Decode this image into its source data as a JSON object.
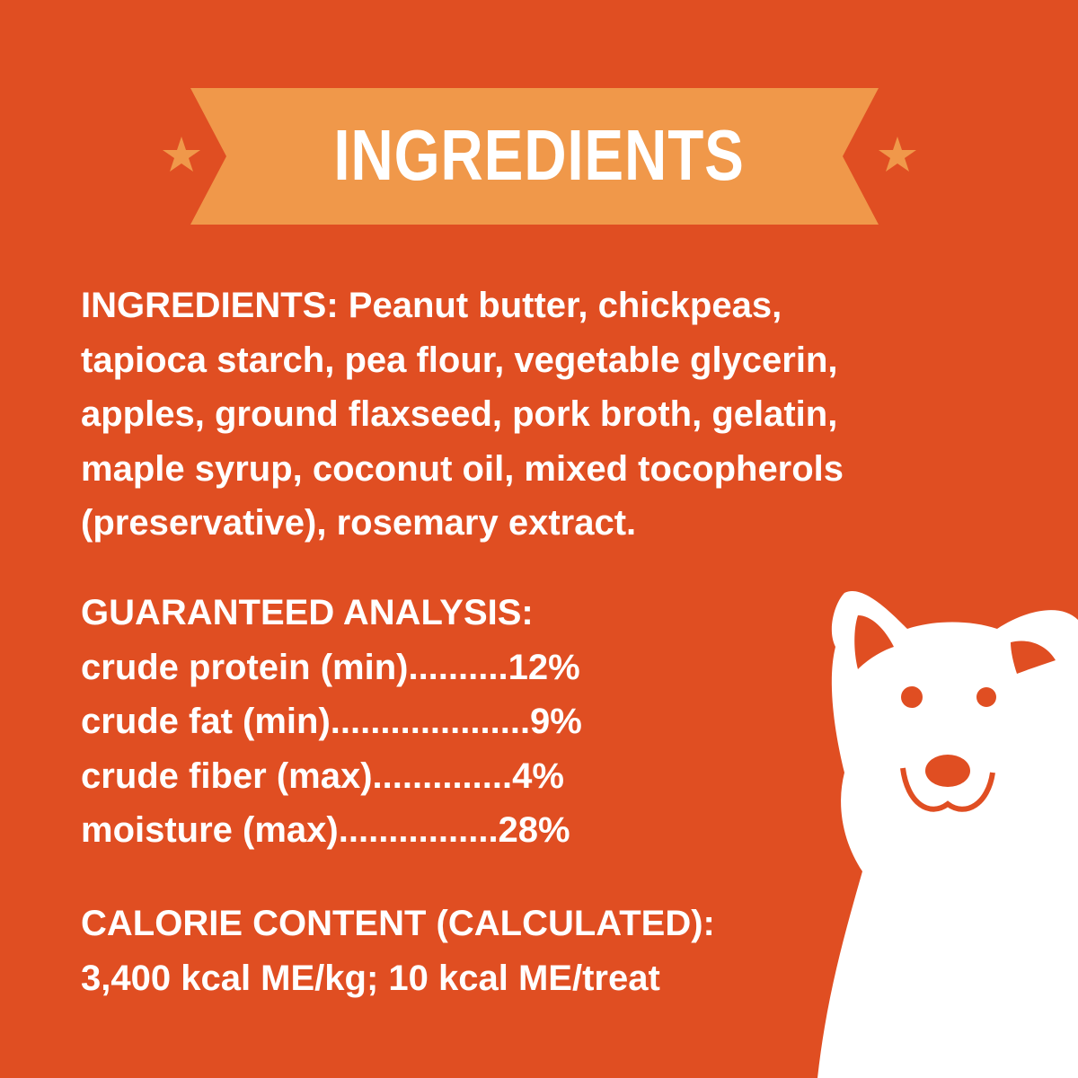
{
  "banner": {
    "title": "INGREDIENTS",
    "star_icon": "star-icon"
  },
  "colors": {
    "background": "#E04E22",
    "banner": "#F0984A",
    "text": "#FFFFFF"
  },
  "ingredients": {
    "lines": [
      "INGREDIENTS:  Peanut butter, chickpeas,",
      "tapioca starch, pea flour, vegetable glycerin,",
      "apples, ground flaxseed, pork broth, gelatin,",
      "maple syrup, coconut oil, mixed tocopherols",
      "(preservative), rosemary extract."
    ]
  },
  "analysis": {
    "heading": "GUARANTEED ANALYSIS:",
    "rows": [
      "crude protein (min)..........12%",
      "crude fat (min)....................9%",
      "crude fiber (max)..............4%",
      "moisture (max)................28%"
    ]
  },
  "calorie": {
    "heading": "CALORIE CONTENT (CALCULATED):",
    "value": "3,400 kcal ME/kg; 10 kcal ME/treat"
  },
  "illustration": "dog-illustration"
}
